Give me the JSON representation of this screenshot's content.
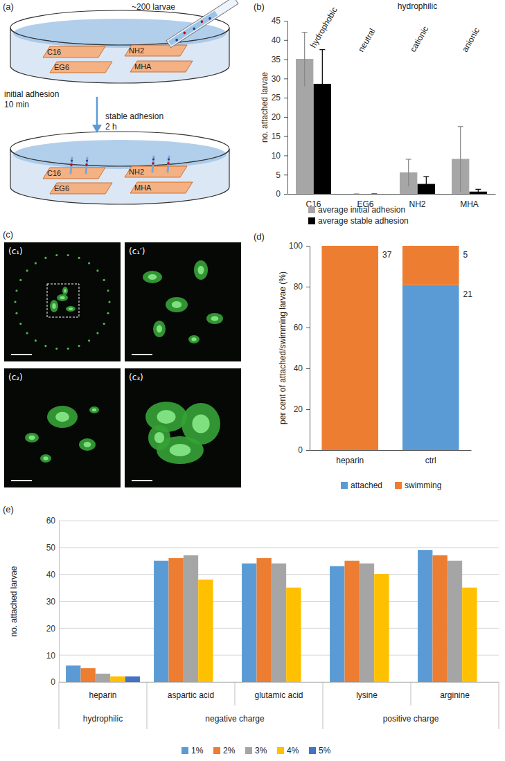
{
  "panel_a": {
    "label": "(a)",
    "pipette_label": "~200 larvae",
    "surfaces": [
      "C16",
      "NH2",
      "EG6",
      "MHA"
    ],
    "step1": [
      "initial adhesion",
      "10 min"
    ],
    "step2": [
      "stable adhesion",
      "2 h"
    ]
  },
  "panel_c": {
    "label": "(c)",
    "images": [
      "(c₁)",
      "(c₁′)",
      "(c₂)",
      "(c₃)"
    ]
  },
  "chart_data": [
    {
      "type": "bar",
      "label": "(b)",
      "categories": [
        "C16",
        "EG6",
        "NH2",
        "MHA"
      ],
      "y_label": "no. attached larvae",
      "annotations": [
        "hydrophobic",
        "hydrophilic",
        "neutral",
        "cationic",
        "anionic"
      ],
      "series": [
        {
          "name": "average initial adhesion",
          "color": "#a6a6a6",
          "values": [
            35,
            0,
            5.5,
            9
          ],
          "errors": [
            7,
            0,
            3.5,
            8.5
          ]
        },
        {
          "name": "average stable adhesion",
          "color": "#000000",
          "values": [
            28.5,
            0,
            2.5,
            0.5
          ],
          "errors": [
            9,
            0,
            2,
            0.7
          ]
        }
      ],
      "ylim": [
        0,
        45
      ],
      "yticks": [
        0,
        5,
        10,
        15,
        20,
        25,
        30,
        35,
        40,
        45
      ],
      "legend": "bottom"
    },
    {
      "type": "bar",
      "stacked": true,
      "label": "(d)",
      "categories": [
        "heparin",
        "ctrl"
      ],
      "y_label": "per cent of attached/swimming larvae (%)",
      "series": [
        {
          "name": "attached",
          "color": "#5b9bd5",
          "values": [
            0,
            80.8
          ],
          "counts": [
            null,
            21
          ]
        },
        {
          "name": "swimming",
          "color": "#ed7d31",
          "values": [
            100,
            19.2
          ],
          "counts": [
            37,
            5
          ]
        }
      ],
      "ylim": [
        0,
        100
      ],
      "yticks": [
        0,
        20,
        40,
        60,
        80,
        100
      ],
      "legend": "bottom"
    },
    {
      "type": "bar",
      "label": "(e)",
      "categories": [
        "heparin",
        "aspartic acid",
        "glutamic acid",
        "lysine",
        "arginine"
      ],
      "category_groups": [
        {
          "name": "hydrophilic",
          "categories": [
            "heparin"
          ]
        },
        {
          "name": "negative charge",
          "categories": [
            "aspartic acid",
            "glutamic acid"
          ]
        },
        {
          "name": "positive charge",
          "categories": [
            "lysine",
            "arginine"
          ]
        }
      ],
      "y_label": "no. attached larvae",
      "series": [
        {
          "name": "1%",
          "color": "#5b9bd5",
          "values": [
            6,
            45,
            44,
            43,
            49
          ]
        },
        {
          "name": "2%",
          "color": "#ed7d31",
          "values": [
            5,
            46,
            46,
            45,
            47
          ]
        },
        {
          "name": "3%",
          "color": "#a5a5a5",
          "values": [
            3,
            47,
            44,
            44,
            45
          ]
        },
        {
          "name": "4%",
          "color": "#ffc000",
          "values": [
            2,
            38,
            35,
            40,
            35
          ]
        },
        {
          "name": "5%",
          "color": "#4472c4",
          "values": [
            2,
            0,
            0,
            0,
            0
          ]
        }
      ],
      "ylim": [
        0,
        60
      ],
      "yticks": [
        0,
        10,
        20,
        30,
        40,
        50,
        60
      ],
      "grid": true,
      "legend": "bottom"
    }
  ]
}
